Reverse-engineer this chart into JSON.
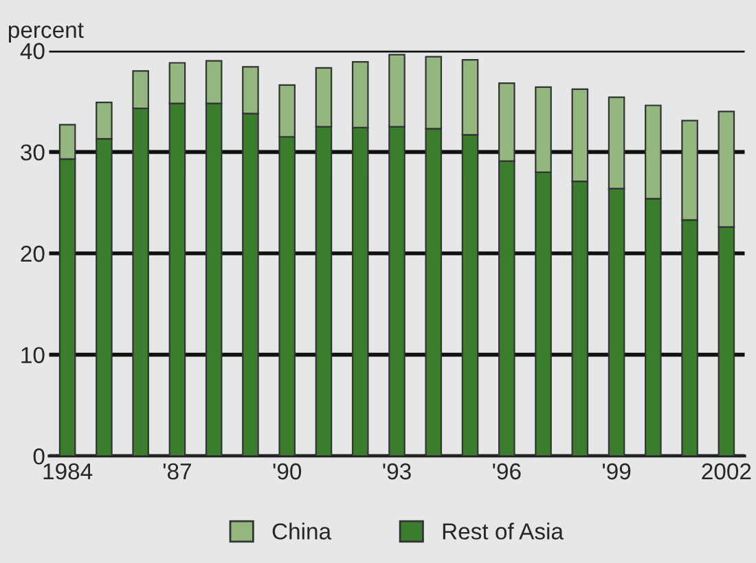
{
  "chart_data": {
    "type": "bar",
    "stacked": true,
    "ylabel": "percent",
    "categories": [
      "1984",
      null,
      null,
      "'87",
      null,
      null,
      "'90",
      null,
      null,
      "'93",
      null,
      null,
      "'96",
      null,
      null,
      "'99",
      null,
      null,
      "2002"
    ],
    "series": [
      {
        "name": "Rest of Asia",
        "color": "#3a7d2c",
        "values": [
          29.3,
          31.3,
          34.3,
          34.8,
          34.8,
          33.8,
          31.5,
          32.5,
          32.4,
          32.5,
          32.3,
          31.7,
          29.1,
          28.0,
          27.1,
          26.4,
          25.4,
          23.3,
          22.6
        ]
      },
      {
        "name": "China",
        "color": "#93b77f",
        "values": [
          3.4,
          3.6,
          3.7,
          4.0,
          4.2,
          4.6,
          5.1,
          5.8,
          6.5,
          7.1,
          7.1,
          7.4,
          7.7,
          8.4,
          9.1,
          9.0,
          9.2,
          9.8,
          11.4
        ]
      }
    ],
    "ylim": [
      0,
      40
    ],
    "yticks": [
      0,
      10,
      20,
      30,
      40
    ],
    "grid": "y",
    "legend": "bottom"
  }
}
